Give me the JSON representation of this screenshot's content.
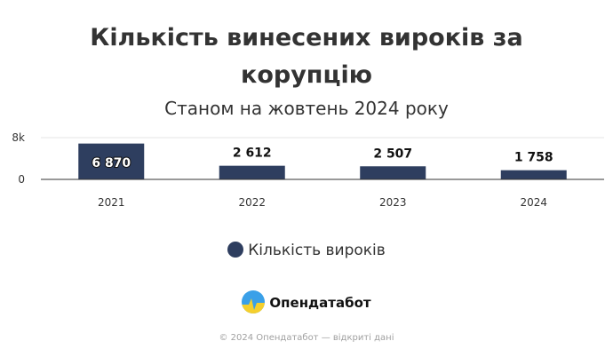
{
  "chart_data": {
    "type": "bar",
    "title_lines": [
      "Кількість винесених вироків за",
      "корупцію"
    ],
    "subtitle": "Станом на жовтень 2024 року",
    "categories": [
      "2021",
      "2022",
      "2023",
      "2024"
    ],
    "series": [
      {
        "name": "Кількість вироків",
        "values": [
          6870,
          2612,
          2507,
          1758
        ],
        "labels": [
          "6 870",
          "2 612",
          "2 507",
          "1 758"
        ]
      }
    ],
    "ylim": [
      0,
      8000
    ],
    "yticks": [
      {
        "value": 0,
        "label": "0"
      },
      {
        "value": 8000,
        "label": "8k"
      }
    ],
    "grid": true,
    "legend_position": "bottom",
    "colors": {
      "bar": "#2e3e5f",
      "grid": "#e6e6e6",
      "axis": "#333333"
    }
  },
  "logo_text": "Опендатабот",
  "footer": "© 2024 Опендатабот — відкриті дані"
}
